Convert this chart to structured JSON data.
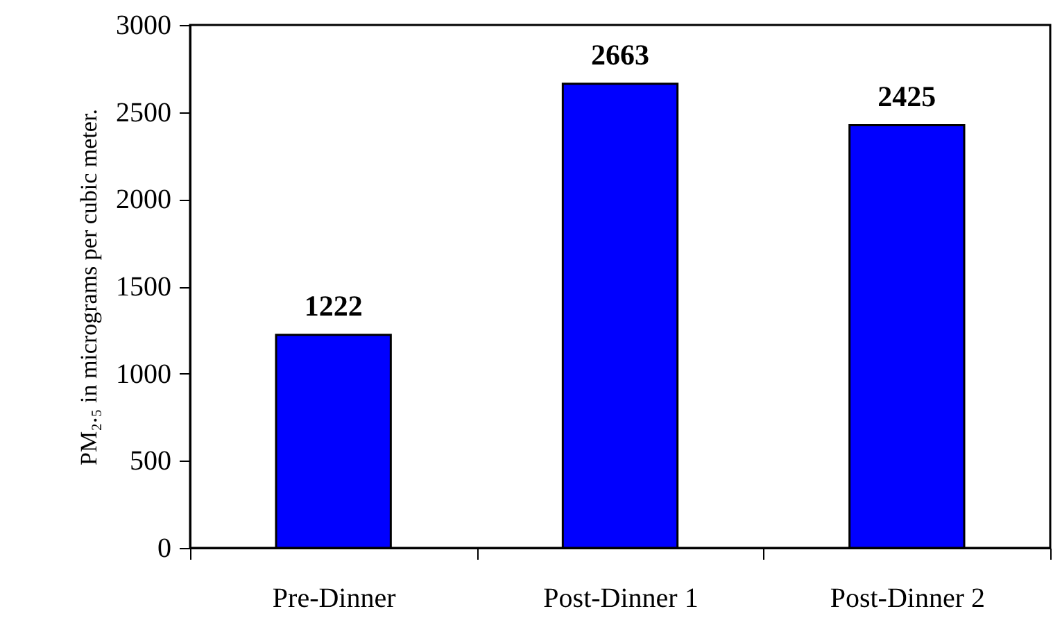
{
  "chart_data": {
    "type": "bar",
    "ylabel": "PM₂.₅ in micrograms per cubic meter.",
    "categories": [
      "Pre-Dinner",
      "Post-Dinner 1",
      "Post-Dinner 2"
    ],
    "values": [
      1222,
      2663,
      2425
    ],
    "color": "#0000ff",
    "data_labels": true,
    "ylim": [
      0,
      3000
    ],
    "yticks": [
      0,
      500,
      1000,
      1500,
      2000,
      2500,
      3000
    ],
    "grid": false
  }
}
